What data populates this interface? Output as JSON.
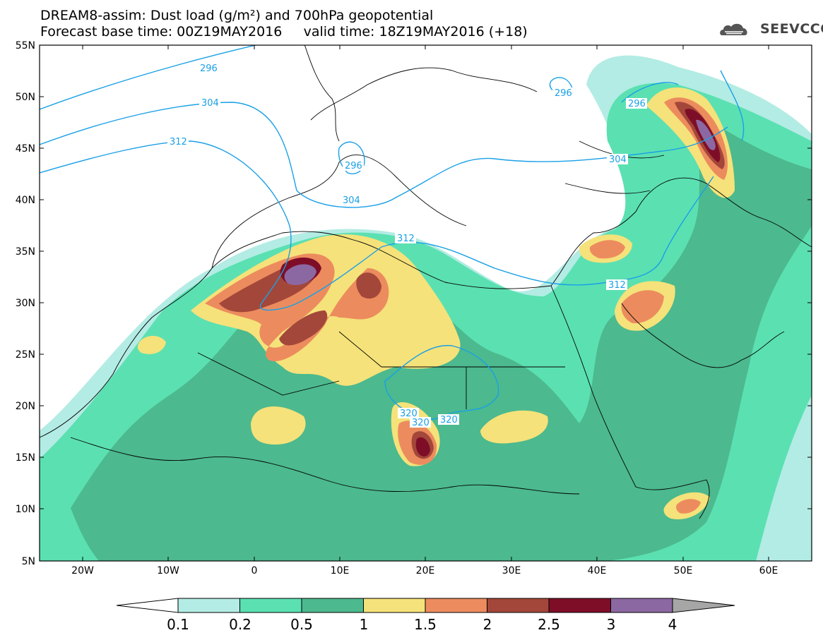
{
  "title_line1": "DREAM8-assim: Dust load (g/m²) and 700hPa geopotential",
  "title_line2": "Forecast base time: 00Z19MAY2016     valid time: 18Z19MAY2016 (+18)",
  "logo_text": "SEEVCCC",
  "lat_ticks": [
    "55N",
    "50N",
    "45N",
    "40N",
    "35N",
    "30N",
    "25N",
    "20N",
    "15N",
    "10N",
    "5N"
  ],
  "lon_ticks": [
    "20W",
    "10W",
    "0",
    "10E",
    "20E",
    "30E",
    "40E",
    "50E",
    "60E"
  ],
  "contour_labels": [
    "296",
    "304",
    "312",
    "296",
    "304",
    "296",
    "296",
    "304",
    "312",
    "312",
    "320",
    "320",
    "320"
  ],
  "colorbar": {
    "labels": [
      "0.1",
      "0.2",
      "0.5",
      "1",
      "1.5",
      "2",
      "2.5",
      "3",
      "4"
    ],
    "colors": [
      "#b3ece4",
      "#5be0b2",
      "#4cb98e",
      "#f5e27a",
      "#ec8c5e",
      "#a3473a",
      "#7e0e27",
      "#8c68a2"
    ],
    "under_color": "#ffffff",
    "over_color": "#a6a6a6"
  },
  "contour_color": "#1aa0e6"
}
